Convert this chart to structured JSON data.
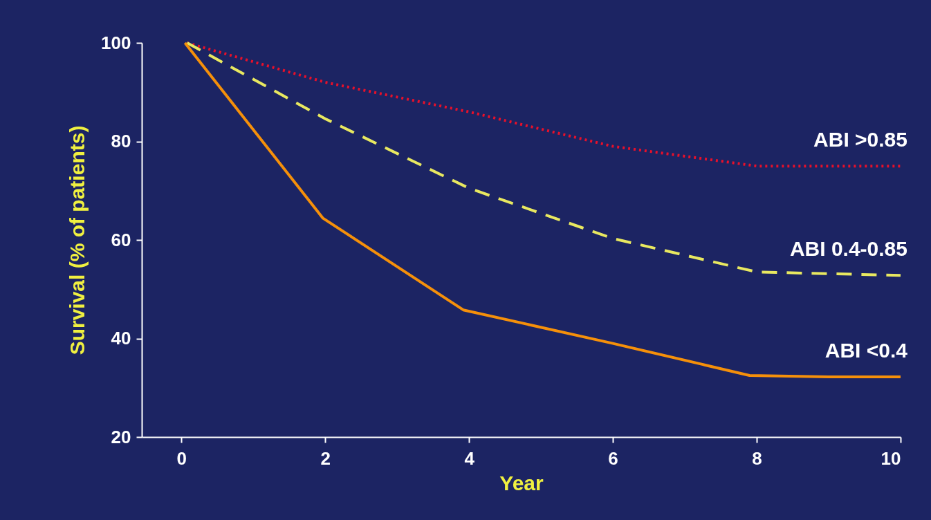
{
  "chart_data": {
    "type": "line",
    "xlabel": "Year",
    "ylabel": "Survival (% of patients)",
    "xlim": [
      -0.55,
      10
    ],
    "xticks": [
      0,
      2,
      4,
      6,
      8,
      10
    ],
    "ylim": [
      20,
      100
    ],
    "yticks": [
      20,
      40,
      60,
      80,
      100
    ],
    "grid": false,
    "marker": "none",
    "series": [
      {
        "name": "ABI >0.85",
        "color": "#e8102a",
        "line_style": "dotted",
        "x": [
          0.08,
          2,
          4,
          6,
          8,
          10
        ],
        "values": [
          100,
          92,
          86,
          79,
          75,
          75
        ]
      },
      {
        "name": "ABI 0.4-0.85",
        "color": "#e8e860",
        "line_style": "dashed",
        "x": [
          0.08,
          2,
          4,
          6,
          8,
          10
        ],
        "values": [
          100,
          84.6,
          70.5,
          60.3,
          53.5,
          52.8
        ]
      },
      {
        "name": "ABI <0.4",
        "color": "#f5900a",
        "line_style": "solid",
        "x": [
          0.05,
          1.97,
          3.92,
          6,
          7.9,
          9,
          10
        ],
        "values": [
          100,
          64.4,
          45.8,
          39,
          32.5,
          32.2,
          32.2
        ]
      }
    ]
  }
}
